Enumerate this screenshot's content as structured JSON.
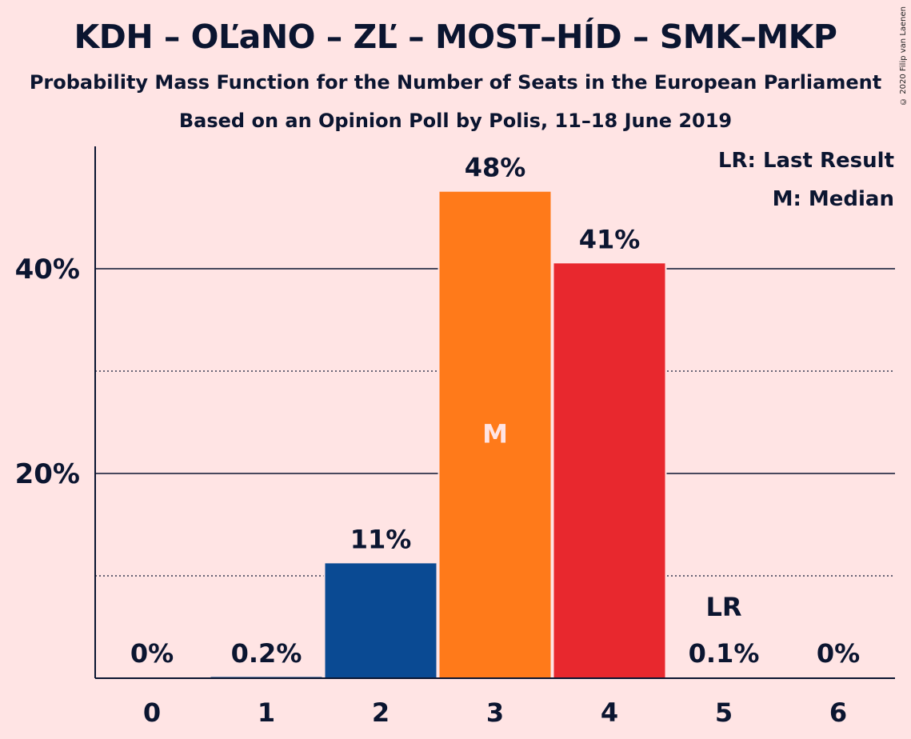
{
  "chart_data": {
    "type": "bar",
    "title": "KDH – OĽaNO – ZĽ – MOST–HÍD – SMK–MKP",
    "subtitle": "Probability Mass Function for the Number of Seats in the European Parliament",
    "subtitle2": "Based on an Opinion Poll by Polis, 11–18 June 2019",
    "copyright": "© 2020 Filip van Laenen",
    "categories": [
      "0",
      "1",
      "2",
      "3",
      "4",
      "5",
      "6"
    ],
    "values": [
      0,
      0.2,
      11.3,
      47.6,
      40.6,
      0.1,
      0
    ],
    "value_labels": [
      "0%",
      "0.2%",
      "11%",
      "48%",
      "41%",
      "0.1%",
      "0%"
    ],
    "bar_colors": [
      "#0A4A93",
      "#0A4A93",
      "#0A4A93",
      "#FF7A1A",
      "#E8282E",
      "#E8282E",
      "#E8282E"
    ],
    "ylim": [
      0,
      52
    ],
    "y_ticks": [
      20,
      40
    ],
    "y_tick_labels": [
      "20%",
      "40%"
    ],
    "y_minor_gridlines": [
      10,
      30
    ],
    "median_index": 3,
    "median_marker": "M",
    "last_result_index": 5,
    "last_result_marker": "LR",
    "legend": [
      "LR: Last Result",
      "M: Median"
    ],
    "legend_position": "top-right",
    "background": "#FFE4E4"
  }
}
